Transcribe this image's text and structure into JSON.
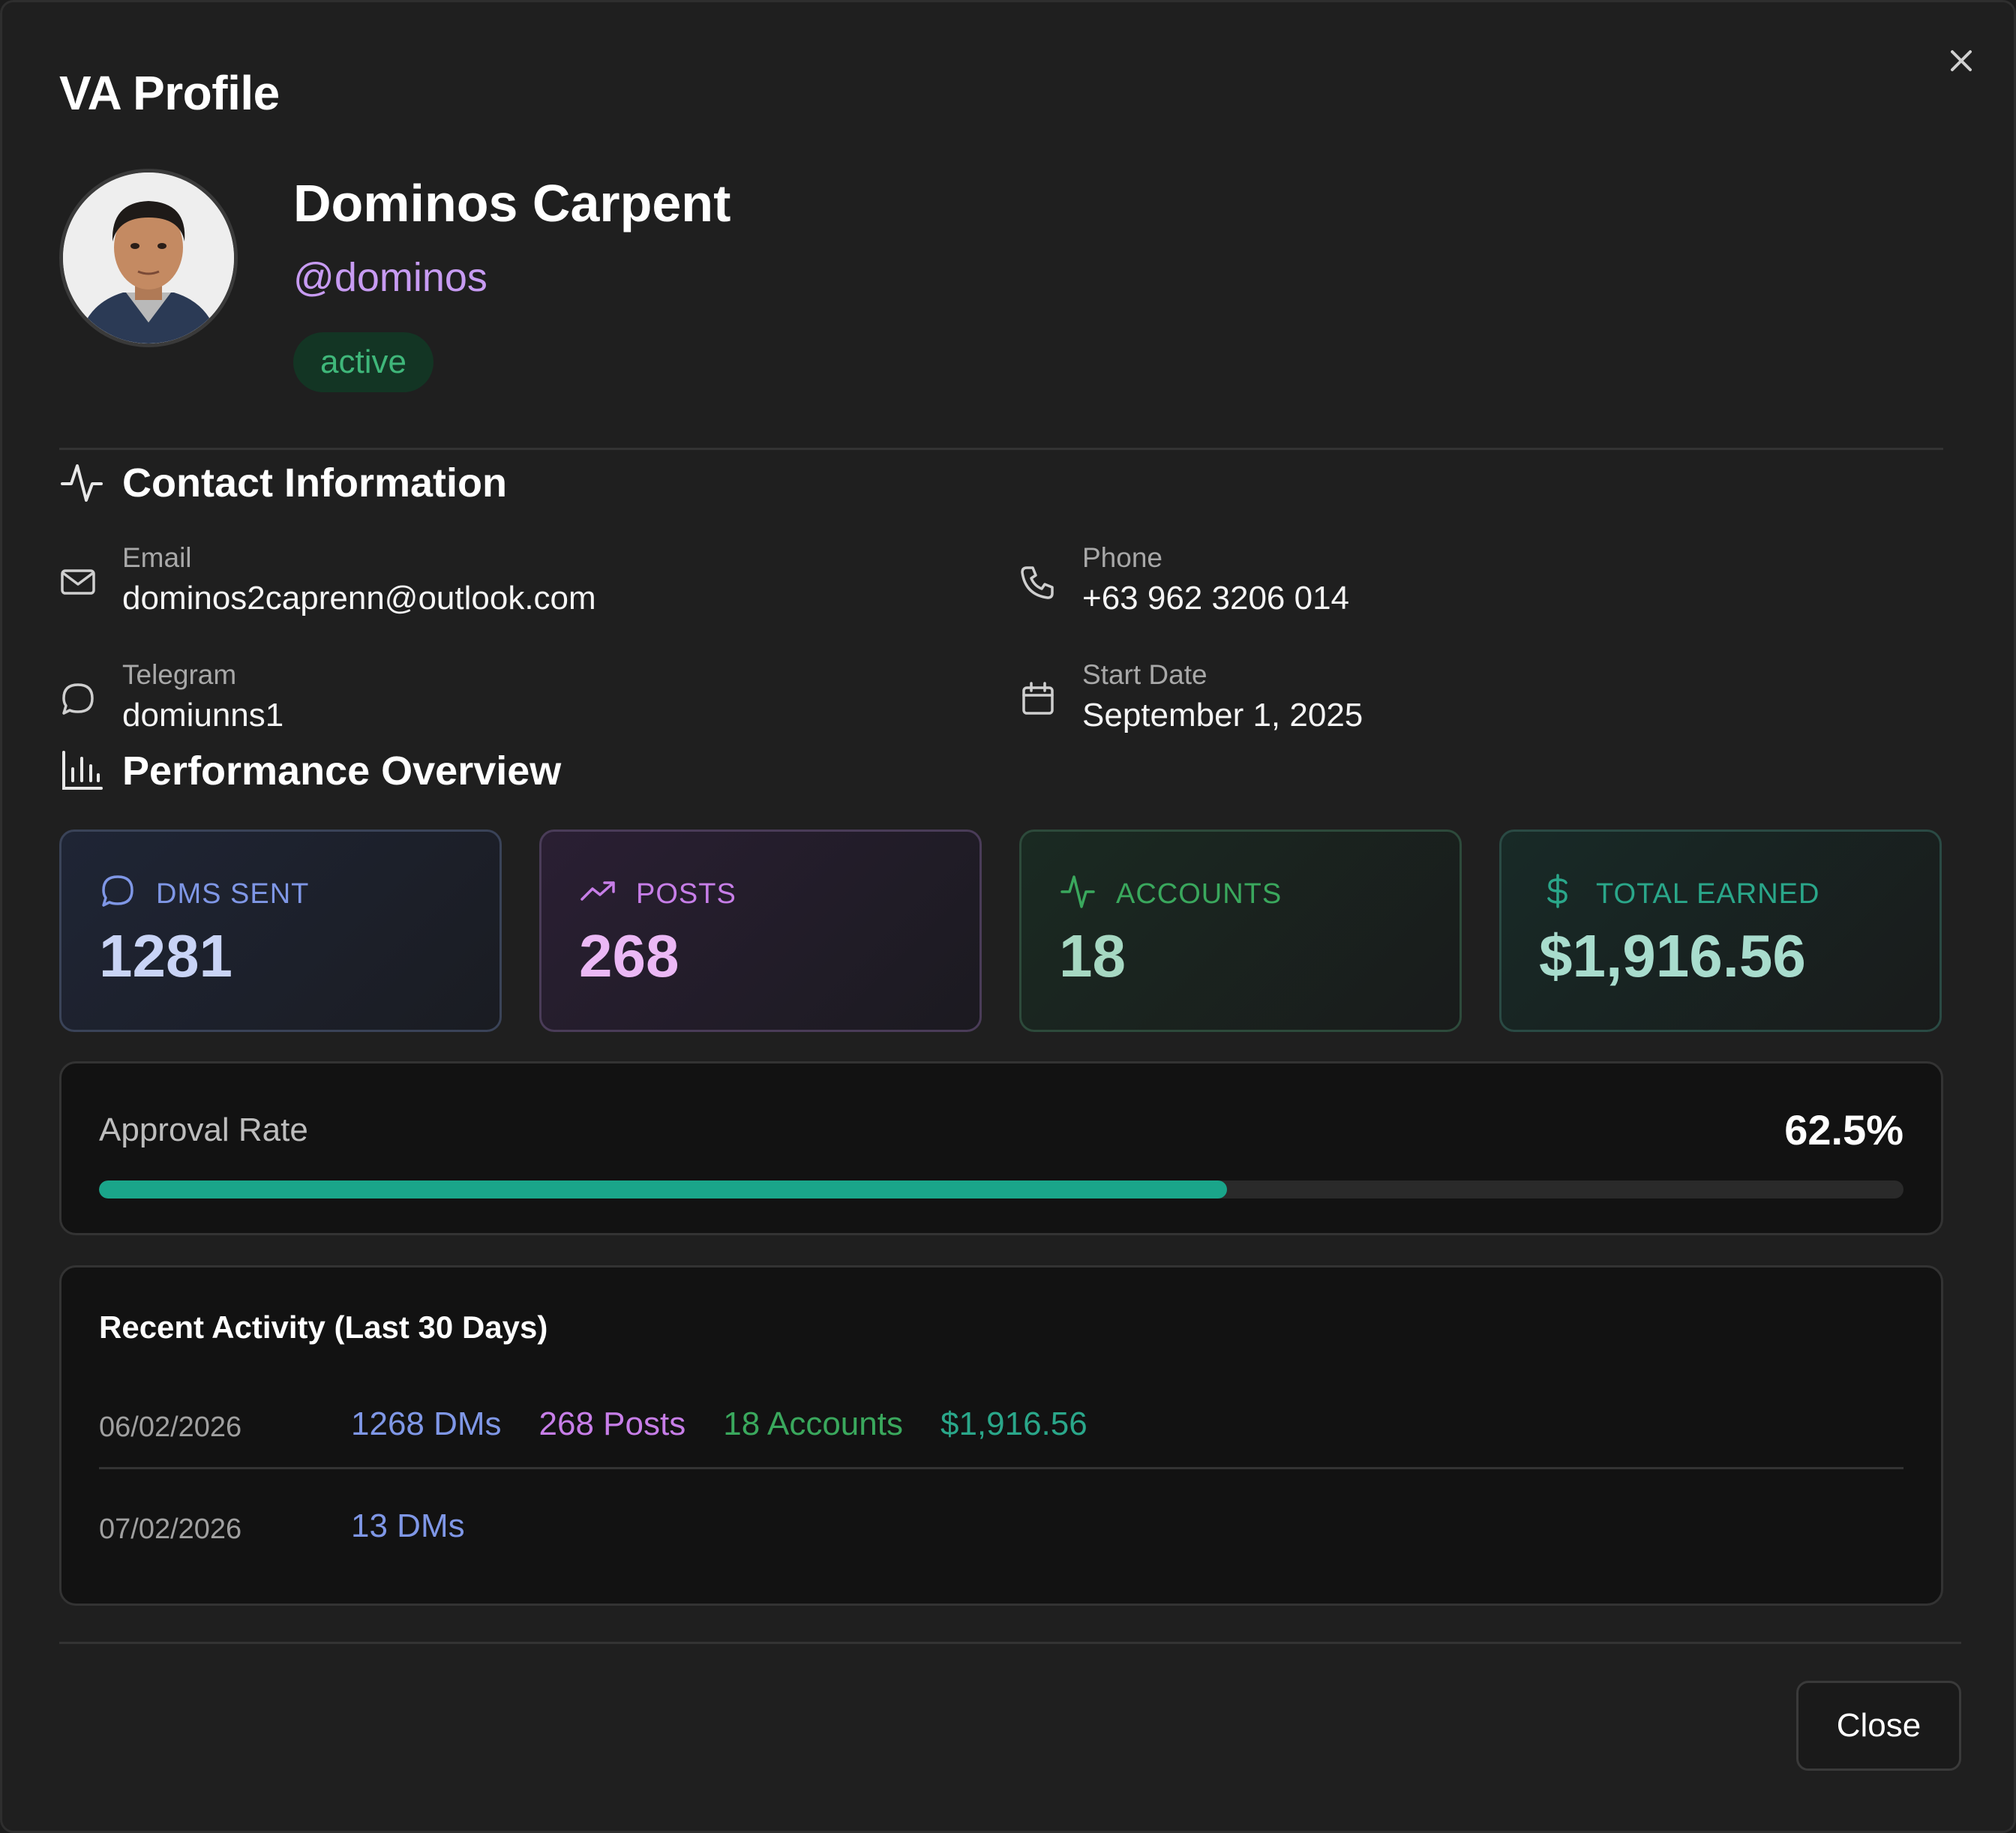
{
  "modal": {
    "title": "VA Profile"
  },
  "profile": {
    "name": "Dominos Carpent",
    "handle": "@dominos",
    "status": "active"
  },
  "contact": {
    "title": "Contact Information",
    "email": {
      "label": "Email",
      "value": "dominos2caprenn@outlook.com"
    },
    "phone": {
      "label": "Phone",
      "value": "+63 962 3206 014"
    },
    "telegram": {
      "label": "Telegram",
      "value": "domiunns1"
    },
    "start_date": {
      "label": "Start Date",
      "value": "September 1, 2025"
    }
  },
  "performance": {
    "title": "Performance Overview",
    "stats": {
      "dms": {
        "label": "DMS SENT",
        "value": "1281",
        "color": "#7f97e6"
      },
      "posts": {
        "label": "POSTS",
        "value": "268",
        "color": "#c77ee8"
      },
      "accounts": {
        "label": "ACCOUNTS",
        "value": "18",
        "color": "#3aa85d"
      },
      "earned": {
        "label": "TOTAL EARNED",
        "value": "$1,916.56",
        "color": "#2aa78a"
      }
    }
  },
  "approval": {
    "label": "Approval Rate",
    "value_text": "62.5%",
    "fraction": 0.625,
    "bar_color": "#1aa58a"
  },
  "activity": {
    "title": "Recent Activity (Last 30 Days)",
    "rows": [
      {
        "date": "06/02/2026",
        "dms": "1268 DMs",
        "posts": "268 Posts",
        "accounts": "18 Accounts",
        "earned": "$1,916.56"
      },
      {
        "date": "07/02/2026",
        "dms": "13 DMs"
      }
    ]
  },
  "footer": {
    "close_label": "Close"
  }
}
